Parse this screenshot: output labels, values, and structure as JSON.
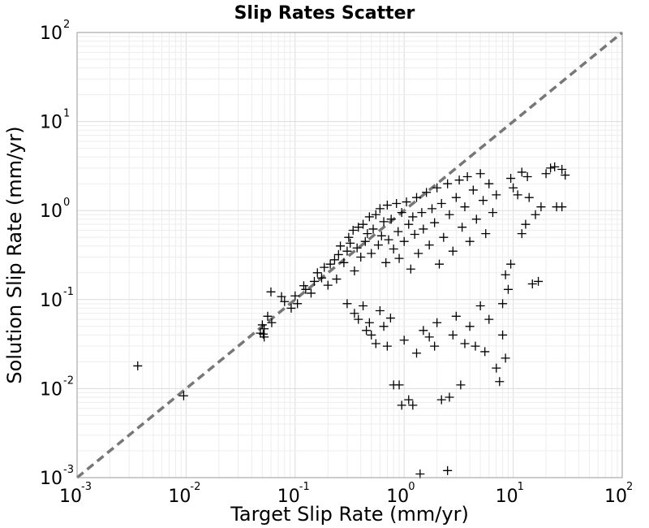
{
  "chart_data": {
    "type": "scatter",
    "title": "Slip Rates Scatter",
    "xlabel": "Target Slip Rate (mm/yr)",
    "ylabel": "Solution Slip Rate (mm/yr)",
    "xscale": "log",
    "yscale": "log",
    "xlim": [
      0.001,
      100
    ],
    "ylim": [
      0.001,
      100
    ],
    "grid": true,
    "marker": "plus",
    "marker_color": "#000000",
    "x_ticks": [
      {
        "base": "10",
        "exp": "-3"
      },
      {
        "base": "10",
        "exp": "-2"
      },
      {
        "base": "10",
        "exp": "-1"
      },
      {
        "base": "10",
        "exp": "0"
      },
      {
        "base": "10",
        "exp": "1"
      },
      {
        "base": "10",
        "exp": "2"
      }
    ],
    "y_ticks": [
      {
        "base": "10",
        "exp": "-3"
      },
      {
        "base": "10",
        "exp": "-2"
      },
      {
        "base": "10",
        "exp": "-1"
      },
      {
        "base": "10",
        "exp": "0"
      },
      {
        "base": "10",
        "exp": "1"
      },
      {
        "base": "10",
        "exp": "2"
      }
    ],
    "reference_line": {
      "from": [
        0.001,
        0.001
      ],
      "to": [
        100,
        100
      ],
      "style": "dashed",
      "color": "#777777"
    },
    "points": [
      [
        0.0036,
        0.018
      ],
      [
        0.0095,
        0.0083
      ],
      [
        0.05,
        0.052
      ],
      [
        0.048,
        0.042
      ],
      [
        0.051,
        0.041
      ],
      [
        0.052,
        0.038
      ],
      [
        0.056,
        0.065
      ],
      [
        0.052,
        0.047
      ],
      [
        0.061,
        0.055
      ],
      [
        0.06,
        0.122
      ],
      [
        0.075,
        0.108
      ],
      [
        0.08,
        0.095
      ],
      [
        0.092,
        0.08
      ],
      [
        0.1,
        0.11
      ],
      [
        0.105,
        0.09
      ],
      [
        0.12,
        0.143
      ],
      [
        0.125,
        0.13
      ],
      [
        0.14,
        0.118
      ],
      [
        0.15,
        0.16
      ],
      [
        0.16,
        0.2
      ],
      [
        0.175,
        0.175
      ],
      [
        0.185,
        0.23
      ],
      [
        0.2,
        0.145
      ],
      [
        0.21,
        0.25
      ],
      [
        0.23,
        0.28
      ],
      [
        0.24,
        0.17
      ],
      [
        0.25,
        0.32
      ],
      [
        0.26,
        0.4
      ],
      [
        0.28,
        0.26
      ],
      [
        0.3,
        0.35
      ],
      [
        0.31,
        0.5
      ],
      [
        0.32,
        0.43
      ],
      [
        0.34,
        0.6
      ],
      [
        0.35,
        0.21
      ],
      [
        0.37,
        0.38
      ],
      [
        0.38,
        0.65
      ],
      [
        0.4,
        0.3
      ],
      [
        0.42,
        0.7
      ],
      [
        0.44,
        0.45
      ],
      [
        0.46,
        0.55
      ],
      [
        0.48,
        0.85
      ],
      [
        0.5,
        0.33
      ],
      [
        0.52,
        0.62
      ],
      [
        0.55,
        0.9
      ],
      [
        0.58,
        0.41
      ],
      [
        0.6,
        1.05
      ],
      [
        0.62,
        0.52
      ],
      [
        0.65,
        0.75
      ],
      [
        0.68,
        0.26
      ],
      [
        0.7,
        1.15
      ],
      [
        0.72,
        0.47
      ],
      [
        0.76,
        0.8
      ],
      [
        0.8,
        0.37
      ],
      [
        0.85,
        1.2
      ],
      [
        0.88,
        0.58
      ],
      [
        0.9,
        0.29
      ],
      [
        0.95,
        0.95
      ],
      [
        1.0,
        0.45
      ],
      [
        1.05,
        1.25
      ],
      [
        1.1,
        0.7
      ],
      [
        1.15,
        0.22
      ],
      [
        1.2,
        0.85
      ],
      [
        1.25,
        0.54
      ],
      [
        1.3,
        1.4
      ],
      [
        1.35,
        0.33
      ],
      [
        1.45,
        0.95
      ],
      [
        1.5,
        0.62
      ],
      [
        1.6,
        1.6
      ],
      [
        1.7,
        0.41
      ],
      [
        1.8,
        1.05
      ],
      [
        1.9,
        0.73
      ],
      [
        2.0,
        1.8
      ],
      [
        2.1,
        0.25
      ],
      [
        2.2,
        1.2
      ],
      [
        2.3,
        0.5
      ],
      [
        2.5,
        2.0
      ],
      [
        2.6,
        0.9
      ],
      [
        2.8,
        0.35
      ],
      [
        3.0,
        1.4
      ],
      [
        3.2,
        2.2
      ],
      [
        3.4,
        0.65
      ],
      [
        3.6,
        1.1
      ],
      [
        3.8,
        2.4
      ],
      [
        4.0,
        0.45
      ],
      [
        4.3,
        1.7
      ],
      [
        4.6,
        0.8
      ],
      [
        5.0,
        2.6
      ],
      [
        5.3,
        1.3
      ],
      [
        5.6,
        0.55
      ],
      [
        6.0,
        2.0
      ],
      [
        6.5,
        0.95
      ],
      [
        7.0,
        1.5
      ],
      [
        0.3,
        0.09
      ],
      [
        0.35,
        0.07
      ],
      [
        0.38,
        0.06
      ],
      [
        0.42,
        0.085
      ],
      [
        0.45,
        0.045
      ],
      [
        0.48,
        0.055
      ],
      [
        0.5,
        0.04
      ],
      [
        0.55,
        0.032
      ],
      [
        0.6,
        0.075
      ],
      [
        0.65,
        0.05
      ],
      [
        0.7,
        0.03
      ],
      [
        0.75,
        0.062
      ],
      [
        0.8,
        0.011
      ],
      [
        0.9,
        0.011
      ],
      [
        0.95,
        0.0065
      ],
      [
        1.0,
        0.035
      ],
      [
        1.1,
        0.0075
      ],
      [
        1.2,
        0.0065
      ],
      [
        1.3,
        0.025
      ],
      [
        1.4,
        0.0011
      ],
      [
        1.5,
        0.045
      ],
      [
        1.7,
        0.038
      ],
      [
        1.9,
        0.03
      ],
      [
        2.0,
        0.055
      ],
      [
        2.2,
        0.0075
      ],
      [
        2.5,
        0.0012
      ],
      [
        2.6,
        0.008
      ],
      [
        2.8,
        0.04
      ],
      [
        3.0,
        0.065
      ],
      [
        3.3,
        0.011
      ],
      [
        3.6,
        0.032
      ],
      [
        4.0,
        0.05
      ],
      [
        4.5,
        0.03
      ],
      [
        5.0,
        0.085
      ],
      [
        5.5,
        0.026
      ],
      [
        6.0,
        0.06
      ],
      [
        7.0,
        0.017
      ],
      [
        7.5,
        0.012
      ],
      [
        8.0,
        0.04
      ],
      [
        8.5,
        0.022
      ],
      [
        8.0,
        0.09
      ],
      [
        9.0,
        0.13
      ],
      [
        8.5,
        0.19
      ],
      [
        9.5,
        0.25
      ],
      [
        12.0,
        0.55
      ],
      [
        13.0,
        0.7
      ],
      [
        15.0,
        0.15
      ],
      [
        16.0,
        0.9
      ],
      [
        17.0,
        0.16
      ],
      [
        18.0,
        1.1
      ],
      [
        20.0,
        2.6
      ],
      [
        22.0,
        3.0
      ],
      [
        24.0,
        3.1
      ],
      [
        25.0,
        1.1
      ],
      [
        28.0,
        1.1
      ],
      [
        30.0,
        2.5
      ],
      [
        28.0,
        2.9
      ],
      [
        12.0,
        2.7
      ],
      [
        10.0,
        1.8
      ],
      [
        14.0,
        1.4
      ],
      [
        9.5,
        2.3
      ],
      [
        11.0,
        1.5
      ],
      [
        13.5,
        2.4
      ]
    ]
  }
}
